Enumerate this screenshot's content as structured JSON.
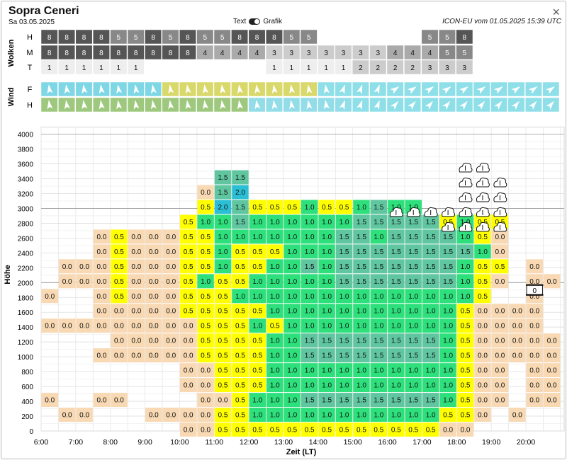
{
  "header": {
    "title": "Sopra Ceneri",
    "date": "Sa 03.05.2025",
    "toggle_left": "Text",
    "toggle_right": "Grafik",
    "model": "ICON-EU vom 01.05.2025 15:39 UTC",
    "close": "×"
  },
  "clouds": {
    "section_label": "Wolken",
    "row_labels": [
      "H",
      "M",
      "T"
    ],
    "rows": [
      [
        "8",
        "8",
        "8",
        "8",
        "5",
        "5",
        "8",
        "5",
        "8",
        "5",
        "5",
        "8",
        "8",
        "8",
        "5",
        "5",
        "",
        "",
        "",
        "",
        "",
        "",
        "5",
        "5",
        "8"
      ],
      [
        "8",
        "8",
        "8",
        "8",
        "8",
        "8",
        "8",
        "8",
        "8",
        "4",
        "4",
        "4",
        "4",
        "3",
        "3",
        "3",
        "3",
        "3",
        "3",
        "3",
        "4",
        "4",
        "4",
        "5",
        "5"
      ],
      [
        "1",
        "1",
        "1",
        "1",
        "1",
        "1",
        "",
        "",
        "",
        "",
        "",
        "",
        "",
        "1",
        "1",
        "1",
        "1",
        "1",
        "2",
        "2",
        "2",
        "2",
        "3",
        "3",
        "3"
      ]
    ]
  },
  "wind": {
    "section_label": "Wind",
    "row_labels": [
      "F",
      "H"
    ]
  },
  "chart_data": {
    "type": "heatmap",
    "xlabel": "Zeit (LT)",
    "ylabel": "Höhe",
    "x_ticks": [
      "6:00",
      "7:00",
      "8:00",
      "9:00",
      "10:00",
      "11:00",
      "12:00",
      "13:00",
      "14:00",
      "15:00",
      "16:00",
      "17:00",
      "18:00",
      "19:00",
      "20:00"
    ],
    "y_ticks": [
      "0",
      "200",
      "400",
      "600",
      "800",
      "1000",
      "1200",
      "1400",
      "1600",
      "1800",
      "2000",
      "2200",
      "2400",
      "2600",
      "2800",
      "3000",
      "3200",
      "3400",
      "3600",
      "3800",
      "4000"
    ],
    "time_slots": [
      "6:00",
      "6:30",
      "7:00",
      "7:30",
      "8:00",
      "8:30",
      "9:00",
      "9:30",
      "10:00",
      "10:30",
      "11:00",
      "11:30",
      "12:00",
      "12:30",
      "13:00",
      "13:30",
      "14:00",
      "14:30",
      "15:00",
      "15:30",
      "16:00",
      "16:30",
      "17:00",
      "17:30",
      "18:00",
      "18:30",
      "19:00",
      "19:30",
      "20:00",
      "20:30"
    ],
    "value_rows": [
      {
        "height": 0,
        "values": [
          "",
          "",
          "",
          "",
          "",
          "",
          "",
          "",
          "0.0",
          "0.0",
          "0.5",
          "0.5",
          "0.5",
          "0.5",
          "0.5",
          "0.5",
          "0.5",
          "0.5",
          "0.5",
          "0.5",
          "0.5",
          "0.5",
          "0.5",
          "0.0",
          "0.0",
          "",
          "",
          "",
          "",
          ""
        ]
      },
      {
        "height": 200,
        "values": [
          "",
          "0.0",
          "0.0",
          "",
          "",
          "",
          "0.0",
          "0.0",
          "0.0",
          "0.0",
          "0.5",
          "0.5",
          "1.0",
          "1.0",
          "1.0",
          "1.0",
          "1.0",
          "1.0",
          "1.0",
          "1.0",
          "1.0",
          "1.0",
          "1.0",
          "0.5",
          "0.5",
          "0.0",
          "",
          "0.0",
          "",
          ""
        ]
      },
      {
        "height": 400,
        "values": [
          "0.0",
          "",
          "",
          "0.0",
          "0.0",
          "",
          "",
          "",
          "",
          "0.0",
          "0.0",
          "0.5",
          "1.0",
          "1.0",
          "1.0",
          "1.5",
          "1.5",
          "1.5",
          "1.5",
          "1.5",
          "1.5",
          "1.5",
          "1.5",
          "1.0",
          "0.5",
          "0.0",
          "0.0",
          "",
          "0.0",
          "0.0"
        ]
      },
      {
        "height": 600,
        "values": [
          "",
          "",
          "",
          "",
          "",
          "",
          "",
          "",
          "0.0",
          "0.0",
          "0.5",
          "0.5",
          "0.5",
          "1.0",
          "1.0",
          "1.0",
          "1.0",
          "1.0",
          "1.0",
          "1.0",
          "1.0",
          "1.0",
          "1.0",
          "1.0",
          "0.5",
          "0.0",
          "0.0",
          "",
          "0.0",
          "0.0"
        ]
      },
      {
        "height": 800,
        "values": [
          "",
          "",
          "",
          "",
          "",
          "",
          "",
          "",
          "0.0",
          "0.0",
          "0.5",
          "0.5",
          "0.5",
          "1.0",
          "1.0",
          "1.0",
          "1.0",
          "1.0",
          "1.0",
          "1.0",
          "1.0",
          "1.0",
          "1.0",
          "1.0",
          "0.5",
          "0.0",
          "0.0",
          "",
          "0.0",
          "0.0"
        ]
      },
      {
        "height": 1000,
        "values": [
          "",
          "",
          "",
          "0.0",
          "0.0",
          "0.0",
          "0.0",
          "0.0",
          "0.0",
          "0.5",
          "0.5",
          "0.5",
          "0.5",
          "1.0",
          "1.0",
          "1.5",
          "1.5",
          "1.5",
          "1.5",
          "1.5",
          "1.5",
          "1.5",
          "1.5",
          "1.0",
          "0.5",
          "0.0",
          "0.0",
          "0.0",
          "0.0",
          "0.0"
        ]
      },
      {
        "height": 1200,
        "values": [
          "",
          "",
          "",
          "",
          "0.0",
          "0.0",
          "0.0",
          "0.0",
          "0.0",
          "0.5",
          "0.5",
          "0.5",
          "0.5",
          "1.0",
          "1.0",
          "1.5",
          "1.5",
          "1.5",
          "1.5",
          "1.5",
          "1.5",
          "1.5",
          "1.5",
          "1.0",
          "0.5",
          "0.0",
          "0.0",
          "0.0",
          "0.0",
          "0.0"
        ]
      },
      {
        "height": 1400,
        "values": [
          "0.0",
          "0.0",
          "0.0",
          "0.0",
          "0.0",
          "0.0",
          "0.0",
          "0.0",
          "0.0",
          "0.5",
          "0.5",
          "0.5",
          "1.0",
          "0.5",
          "1.0",
          "1.0",
          "1.0",
          "1.0",
          "1.0",
          "1.0",
          "1.0",
          "1.0",
          "1.0",
          "1.0",
          "0.5",
          "0.0",
          "0.0",
          "0.0",
          "0.0",
          ""
        ]
      },
      {
        "height": 1600,
        "values": [
          "",
          "",
          "",
          "0.0",
          "0.0",
          "0.0",
          "0.0",
          "0.0",
          "0.5",
          "0.5",
          "0.5",
          "0.5",
          "0.5",
          "1.0",
          "1.0",
          "1.0",
          "1.0",
          "1.0",
          "1.0",
          "1.0",
          "1.0",
          "1.0",
          "1.0",
          "1.0",
          "0.5",
          "0.0",
          "0.0",
          "0.0",
          "0.0",
          ""
        ]
      },
      {
        "height": 1800,
        "values": [
          "0.0",
          "",
          "",
          "0.0",
          "0.5",
          "0.0",
          "0.0",
          "0.0",
          "0.5",
          "0.5",
          "0.5",
          "1.0",
          "1.0",
          "1.0",
          "1.0",
          "1.0",
          "1.0",
          "1.0",
          "1.0",
          "1.0",
          "1.0",
          "1.0",
          "1.0",
          "1.0",
          "1.0",
          "0.5",
          "",
          "",
          "0.0",
          ""
        ]
      },
      {
        "height": 2000,
        "values": [
          "",
          "0.0",
          "0.0",
          "0.0",
          "0.5",
          "0.0",
          "0.0",
          "0.0",
          "0.5",
          "1.0",
          "0.5",
          "0.5",
          "1.0",
          "1.0",
          "1.0",
          "1.0",
          "1.0",
          "1.5",
          "1.5",
          "1.5",
          "1.5",
          "1.5",
          "1.5",
          "1.5",
          "1.0",
          "0.5",
          "0.0",
          "",
          "0.0",
          "0.0"
        ]
      },
      {
        "height": 2200,
        "values": [
          "",
          "0.0",
          "0.0",
          "0.0",
          "0.5",
          "0.0",
          "0.0",
          "0.0",
          "0.5",
          "0.5",
          "1.0",
          "0.5",
          "0.5",
          "1.0",
          "1.0",
          "1.5",
          "1.0",
          "1.5",
          "1.5",
          "1.5",
          "1.5",
          "1.5",
          "1.5",
          "1.5",
          "1.0",
          "0.5",
          "0.5",
          "",
          "0.0",
          ""
        ]
      },
      {
        "height": 2400,
        "values": [
          "",
          "",
          "",
          "0.0",
          "0.5",
          "0.0",
          "0.0",
          "0.0",
          "0.5",
          "0.5",
          "1.0",
          "0.5",
          "0.5",
          "0.5",
          "1.0",
          "1.0",
          "1.0",
          "1.5",
          "1.5",
          "1.5",
          "1.5",
          "1.5",
          "1.5",
          "1.5",
          "1.5",
          "1.0",
          "0.0",
          "",
          "",
          ""
        ]
      },
      {
        "height": 2600,
        "values": [
          "",
          "",
          "",
          "0.0",
          "0.5",
          "0.0",
          "0.0",
          "0.0",
          "0.5",
          "0.5",
          "1.0",
          "1.0",
          "1.0",
          "1.0",
          "1.0",
          "1.0",
          "1.0",
          "1.5",
          "1.5",
          "1.0",
          "1.5",
          "1.5",
          "1.5",
          "1.5",
          "1.0",
          "0.5",
          "0.0",
          "",
          "",
          ""
        ]
      },
      {
        "height": 2800,
        "values": [
          "",
          "",
          "",
          "",
          "",
          "",
          "",
          "",
          "0.5",
          "1.0",
          "1.0",
          "1.5",
          "1.0",
          "1.0",
          "1.0",
          "1.0",
          "1.0",
          "1.0",
          "1.5",
          "1.5",
          "1.5",
          "1.5",
          "1.5",
          "0.5",
          "1.0",
          "0.5",
          "0.5",
          "",
          "",
          ""
        ]
      },
      {
        "height": 3000,
        "values": [
          "",
          "",
          "",
          "",
          "",
          "",
          "",
          "",
          "",
          "0.5",
          "2.0",
          "1.5",
          "0.5",
          "0.5",
          "0.5",
          "1.0",
          "0.5",
          "0.5",
          "1.0",
          "1.5",
          "1.0",
          "1.0",
          "",
          "",
          "",
          "",
          "",
          "",
          "",
          ""
        ]
      },
      {
        "height": 3200,
        "values": [
          "",
          "",
          "",
          "",
          "",
          "",
          "",
          "",
          "",
          "0.0",
          "1.5",
          "2.0",
          "",
          "",
          "",
          "",
          "",
          "",
          "",
          "",
          "",
          "",
          "",
          "",
          "",
          "",
          "",
          "",
          "",
          ""
        ]
      },
      {
        "height": 3400,
        "values": [
          "",
          "",
          "",
          "",
          "",
          "",
          "",
          "",
          "",
          "",
          "1.5",
          "1.5",
          "",
          "",
          "",
          "",
          "",
          "",
          "",
          "",
          "",
          "",
          "",
          "",
          "",
          "",
          "",
          "",
          "",
          ""
        ]
      }
    ],
    "special_marker": {
      "time": "20:00",
      "height": 1900,
      "label": "0"
    }
  }
}
